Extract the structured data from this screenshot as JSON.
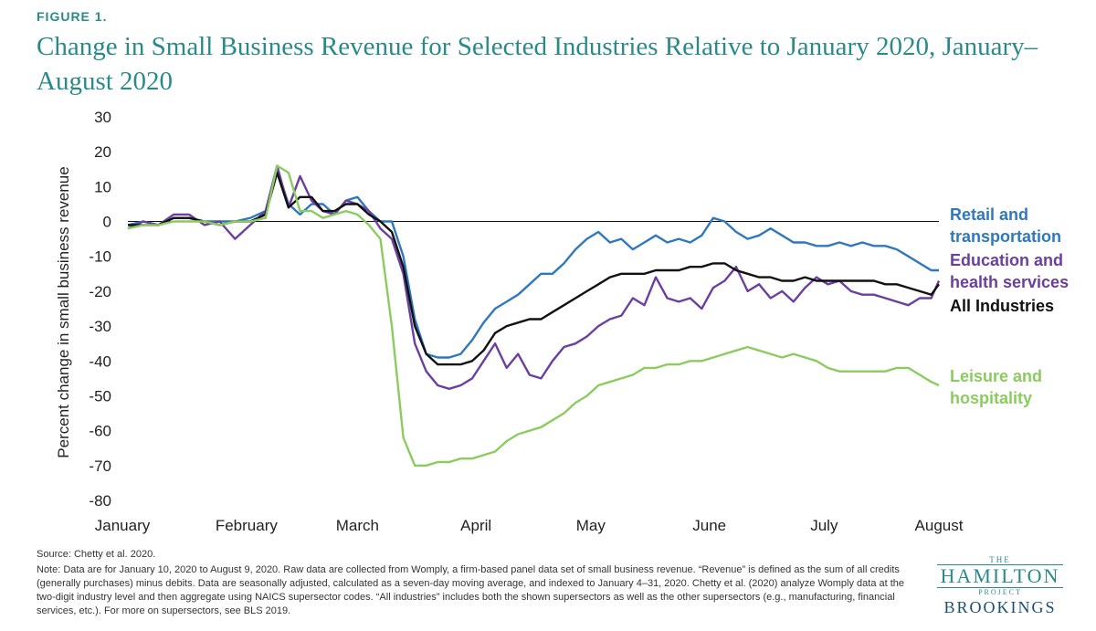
{
  "figure_label": "FIGURE 1.",
  "title": "Change in Small Business Revenue for Selected Industries Relative to January 2020, January–August 2020",
  "source": "Source: Chetty et al. 2020.",
  "note": "Note: Data are for January 10, 2020 to August 9, 2020. Raw data are collected from Womply, a firm-based panel data set of small business revenue. “Revenue” is defined as the sum of all credits (generally purchases) minus debits. Data are seasonally adjusted, calculated as a seven-day moving average, and indexed to January 4–31, 2020. Chetty et al. (2020) analyze Womply data at the two-digit industry level and then aggregate using NAICS supersector codes. “All industries” includes both the shown supersectors as well as the other supersectors (e.g., manufacturing, financial services, etc.). For more on supersectors, see BLS 2019.",
  "logo": {
    "the": "THE",
    "hamilton": "HAMILTON",
    "project": "PROJECT",
    "brookings": "BROOKINGS"
  },
  "chart_data": {
    "type": "line",
    "ylabel": "Percent change in small business revenue",
    "ylim": [
      -80,
      30
    ],
    "yticks": [
      30,
      20,
      10,
      0,
      -10,
      -20,
      -30,
      -40,
      -50,
      -60,
      -70,
      -80
    ],
    "xlim": [
      10,
      222
    ],
    "month_ticks": [
      {
        "label": "January",
        "x": 10
      },
      {
        "label": "February",
        "x": 41
      },
      {
        "label": "March",
        "x": 70
      },
      {
        "label": "April",
        "x": 101
      },
      {
        "label": "May",
        "x": 131
      },
      {
        "label": "June",
        "x": 162
      },
      {
        "label": "July",
        "x": 192
      },
      {
        "label": "August",
        "x": 223
      }
    ],
    "zero_line": true,
    "series": [
      {
        "name": "Retail and transportation",
        "label_lines": [
          "Retail and",
          "transportation"
        ],
        "color": "#2f78bf",
        "x": [
          10,
          14,
          18,
          22,
          26,
          30,
          34,
          38,
          42,
          46,
          49,
          52,
          55,
          58,
          61,
          64,
          67,
          70,
          73,
          76,
          79,
          82,
          85,
          88,
          91,
          94,
          97,
          100,
          103,
          106,
          109,
          112,
          115,
          118,
          121,
          124,
          127,
          130,
          133,
          136,
          139,
          142,
          145,
          148,
          151,
          154,
          157,
          160,
          163,
          166,
          169,
          172,
          175,
          178,
          181,
          184,
          187,
          190,
          193,
          196,
          199,
          202,
          205,
          208,
          211,
          214,
          217,
          220,
          222
        ],
        "values": [
          -1,
          0,
          -1,
          1,
          1,
          0,
          0,
          0,
          1,
          3,
          15,
          5,
          2,
          5,
          5,
          2,
          6,
          7,
          3,
          0,
          0,
          -10,
          -28,
          -38,
          -39,
          -39,
          -38,
          -34,
          -29,
          -25,
          -23,
          -21,
          -18,
          -15,
          -15,
          -12,
          -8,
          -5,
          -3,
          -6,
          -5,
          -8,
          -6,
          -4,
          -6,
          -5,
          -6,
          -4,
          1,
          0,
          -3,
          -5,
          -4,
          -2,
          -4,
          -6,
          -6,
          -7,
          -7,
          -6,
          -7,
          -6,
          -7,
          -7,
          -8,
          -10,
          -12,
          -14,
          -14
        ]
      },
      {
        "name": "Education and health services",
        "label_lines": [
          "Education and",
          "health services"
        ],
        "color": "#6b3fa0",
        "x": [
          10,
          14,
          18,
          22,
          26,
          30,
          34,
          38,
          42,
          46,
          49,
          52,
          55,
          58,
          61,
          64,
          67,
          70,
          73,
          76,
          79,
          82,
          85,
          88,
          91,
          94,
          97,
          100,
          103,
          106,
          109,
          112,
          115,
          118,
          121,
          124,
          127,
          130,
          133,
          136,
          139,
          142,
          145,
          148,
          151,
          154,
          157,
          160,
          163,
          166,
          169,
          172,
          175,
          178,
          181,
          184,
          187,
          190,
          193,
          196,
          199,
          202,
          205,
          208,
          211,
          214,
          217,
          220,
          222
        ],
        "values": [
          -2,
          0,
          -1,
          2,
          2,
          -1,
          0,
          -5,
          -1,
          3,
          16,
          4,
          13,
          6,
          3,
          2,
          6,
          5,
          3,
          -2,
          -5,
          -15,
          -35,
          -43,
          -47,
          -48,
          -47,
          -45,
          -40,
          -35,
          -42,
          -38,
          -44,
          -45,
          -40,
          -36,
          -35,
          -33,
          -30,
          -28,
          -27,
          -22,
          -24,
          -16,
          -22,
          -23,
          -22,
          -25,
          -19,
          -17,
          -13,
          -20,
          -18,
          -22,
          -20,
          -23,
          -19,
          -16,
          -18,
          -17,
          -20,
          -21,
          -21,
          -22,
          -23,
          -24,
          -22,
          -22,
          -17
        ]
      },
      {
        "name": "All Industries",
        "label_lines": [
          "All Industries"
        ],
        "color": "#111111",
        "x": [
          10,
          14,
          18,
          22,
          26,
          30,
          34,
          38,
          42,
          46,
          49,
          52,
          55,
          58,
          61,
          64,
          67,
          70,
          73,
          76,
          79,
          82,
          85,
          88,
          91,
          94,
          97,
          100,
          103,
          106,
          109,
          112,
          115,
          118,
          121,
          124,
          127,
          130,
          133,
          136,
          139,
          142,
          145,
          148,
          151,
          154,
          157,
          160,
          163,
          166,
          169,
          172,
          175,
          178,
          181,
          184,
          187,
          190,
          193,
          196,
          199,
          202,
          205,
          208,
          211,
          214,
          217,
          220,
          222
        ],
        "values": [
          -1,
          -1,
          -1,
          1,
          1,
          0,
          -1,
          0,
          0,
          2,
          14,
          4,
          7,
          7,
          3,
          3,
          5,
          5,
          2,
          0,
          -3,
          -13,
          -30,
          -38,
          -41,
          -41,
          -41,
          -40,
          -37,
          -32,
          -30,
          -29,
          -28,
          -28,
          -26,
          -24,
          -22,
          -20,
          -18,
          -16,
          -15,
          -15,
          -15,
          -14,
          -14,
          -14,
          -13,
          -13,
          -12,
          -12,
          -14,
          -15,
          -16,
          -16,
          -17,
          -17,
          -16,
          -17,
          -17,
          -17,
          -17,
          -17,
          -17,
          -18,
          -18,
          -19,
          -20,
          -21,
          -18
        ]
      },
      {
        "name": "Leisure and hospitality",
        "label_lines": [
          "Leisure and",
          "hospitality"
        ],
        "color": "#8bcc5f",
        "x": [
          10,
          14,
          18,
          22,
          26,
          30,
          34,
          38,
          42,
          46,
          49,
          52,
          55,
          58,
          61,
          64,
          67,
          70,
          73,
          76,
          79,
          82,
          85,
          88,
          91,
          94,
          97,
          100,
          103,
          106,
          109,
          112,
          115,
          118,
          121,
          124,
          127,
          130,
          133,
          136,
          139,
          142,
          145,
          148,
          151,
          154,
          157,
          160,
          163,
          166,
          169,
          172,
          175,
          178,
          181,
          184,
          187,
          190,
          193,
          196,
          199,
          202,
          205,
          208,
          211,
          214,
          217,
          220,
          222
        ],
        "values": [
          -2,
          -1,
          -1,
          0,
          0,
          0,
          -1,
          0,
          0,
          1,
          16,
          14,
          3,
          3,
          1,
          2,
          3,
          2,
          -1,
          -5,
          -30,
          -62,
          -70,
          -70,
          -69,
          -69,
          -68,
          -68,
          -67,
          -66,
          -63,
          -61,
          -60,
          -59,
          -57,
          -55,
          -52,
          -50,
          -47,
          -46,
          -45,
          -44,
          -42,
          -42,
          -41,
          -41,
          -40,
          -40,
          -39,
          -38,
          -37,
          -36,
          -37,
          -38,
          -39,
          -38,
          -39,
          -40,
          -42,
          -43,
          -43,
          -43,
          -43,
          -43,
          -42,
          -42,
          -44,
          -46,
          -47
        ]
      }
    ]
  }
}
